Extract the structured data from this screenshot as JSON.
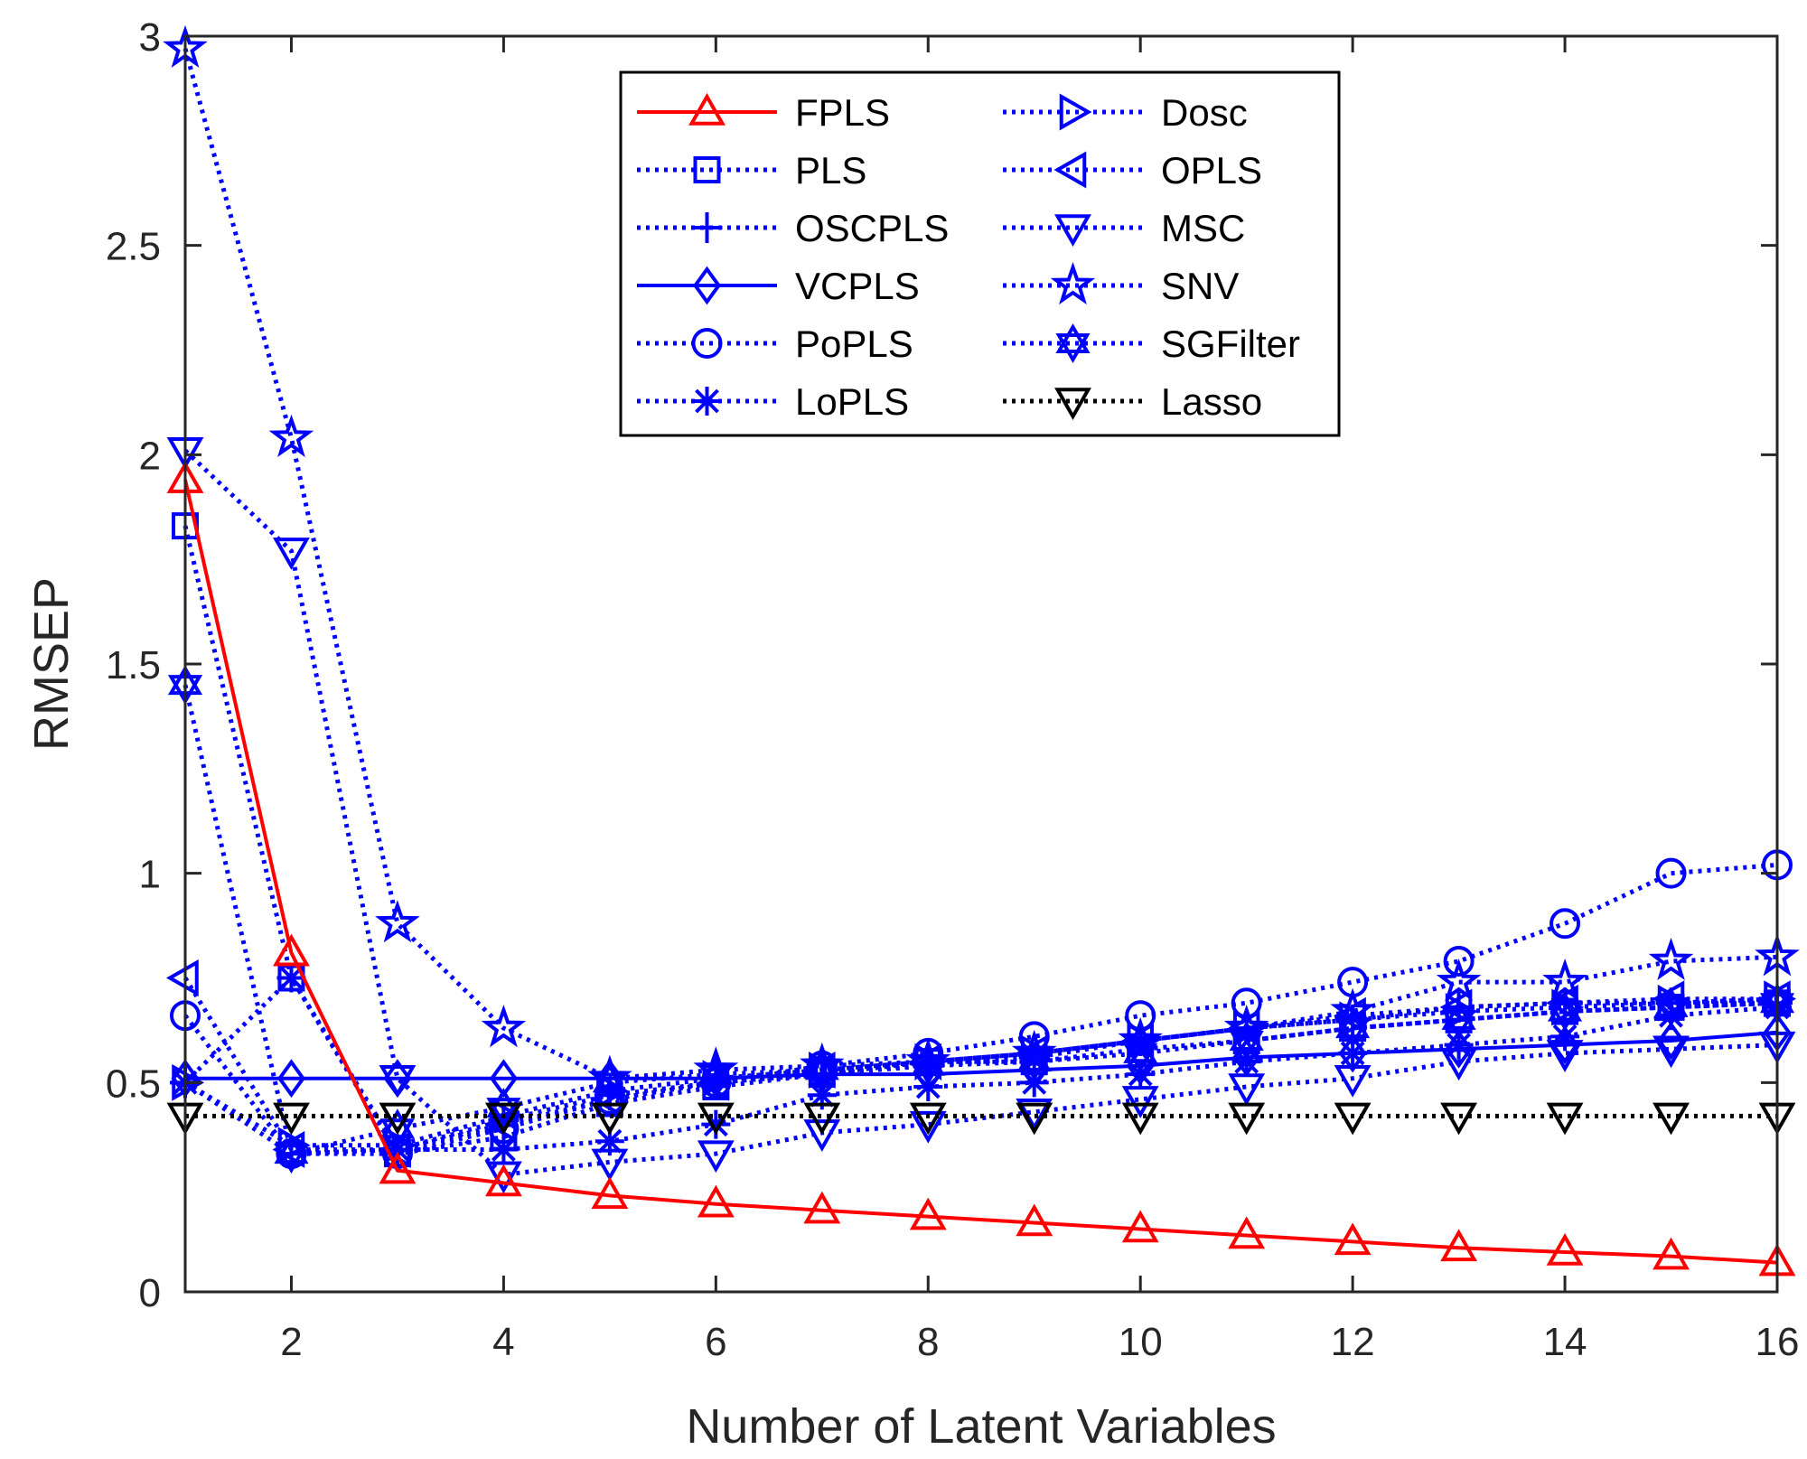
{
  "chart_data": {
    "type": "line",
    "title": "",
    "xlabel": "Number of Latent Variables",
    "ylabel": "RMSEP",
    "xlim": [
      1,
      16
    ],
    "ylim": [
      0,
      3
    ],
    "x": [
      1,
      2,
      3,
      4,
      5,
      6,
      7,
      8,
      9,
      10,
      11,
      12,
      13,
      14,
      15,
      16
    ],
    "xticks": [
      2,
      4,
      6,
      8,
      10,
      12,
      14,
      16
    ],
    "xtick_labels": [
      "2",
      "4",
      "6",
      "8",
      "10",
      "12",
      "14",
      "16"
    ],
    "yticks": [
      0,
      0.5,
      1,
      1.5,
      2,
      2.5,
      3
    ],
    "ytick_labels": [
      "0",
      "0.5",
      "1",
      "1.5",
      "2",
      "2.5",
      "3"
    ],
    "grid": false,
    "legend_position": "top-center",
    "series": [
      {
        "name": "FPLS",
        "color": "#ff0000",
        "line": "solid",
        "marker": "triangle-up",
        "values": [
          1.94,
          0.81,
          0.29,
          0.26,
          0.23,
          0.21,
          0.195,
          0.18,
          0.165,
          0.15,
          0.135,
          0.12,
          0.105,
          0.095,
          0.085,
          0.07
        ]
      },
      {
        "name": "PLS",
        "color": "#0000ff",
        "line": "dotted",
        "marker": "square",
        "values": [
          1.83,
          0.75,
          0.33,
          0.37,
          0.45,
          0.49,
          0.52,
          0.55,
          0.55,
          0.58,
          0.6,
          0.63,
          0.65,
          0.67,
          0.68,
          0.69
        ]
      },
      {
        "name": "OSCPLS",
        "color": "#0000ff",
        "line": "dotted",
        "marker": "plus",
        "values": [
          0.5,
          0.33,
          0.34,
          0.41,
          0.47,
          0.5,
          0.52,
          0.54,
          0.56,
          0.6,
          0.63,
          0.65,
          0.68,
          0.69,
          0.69,
          0.69
        ]
      },
      {
        "name": "VCPLS",
        "color": "#0000ff",
        "line": "solid",
        "marker": "diamond",
        "values": [
          0.51,
          0.51,
          0.51,
          0.51,
          0.51,
          0.51,
          0.52,
          0.52,
          0.53,
          0.54,
          0.56,
          0.57,
          0.58,
          0.59,
          0.6,
          0.62
        ]
      },
      {
        "name": "PoPLS",
        "color": "#0000ff",
        "line": "dotted",
        "marker": "circle",
        "values": [
          0.66,
          0.33,
          0.33,
          0.39,
          0.46,
          0.5,
          0.54,
          0.57,
          0.61,
          0.66,
          0.69,
          0.74,
          0.79,
          0.88,
          1.0,
          1.02
        ]
      },
      {
        "name": "LoPLS",
        "color": "#0000ff",
        "line": "dotted",
        "marker": "asterisk",
        "values": [
          0.5,
          0.75,
          0.34,
          0.34,
          0.36,
          0.4,
          0.47,
          0.49,
          0.5,
          0.52,
          0.55,
          0.57,
          0.59,
          0.61,
          0.66,
          0.68
        ]
      },
      {
        "name": "Dosc",
        "color": "#0000ff",
        "line": "dotted",
        "marker": "triangle-right",
        "values": [
          0.5,
          0.35,
          0.35,
          0.42,
          0.48,
          0.51,
          0.53,
          0.55,
          0.57,
          0.6,
          0.63,
          0.65,
          0.67,
          0.68,
          0.69,
          0.7
        ]
      },
      {
        "name": "OPLS",
        "color": "#0000ff",
        "line": "dotted",
        "marker": "triangle-left",
        "values": [
          0.75,
          0.34,
          0.34,
          0.4,
          0.46,
          0.5,
          0.53,
          0.55,
          0.57,
          0.6,
          0.63,
          0.66,
          0.68,
          0.69,
          0.7,
          0.7
        ]
      },
      {
        "name": "MSC",
        "color": "#0000ff",
        "line": "dotted",
        "marker": "triangle-down",
        "values": [
          2.01,
          1.77,
          0.51,
          0.28,
          0.31,
          0.33,
          0.38,
          0.4,
          0.43,
          0.46,
          0.49,
          0.51,
          0.55,
          0.57,
          0.58,
          0.59
        ]
      },
      {
        "name": "SNV",
        "color": "#0000ff",
        "line": "dotted",
        "marker": "star",
        "values": [
          2.97,
          2.04,
          0.88,
          0.63,
          0.51,
          0.53,
          0.54,
          0.55,
          0.57,
          0.6,
          0.63,
          0.67,
          0.74,
          0.74,
          0.79,
          0.8
        ]
      },
      {
        "name": "SGFilter",
        "color": "#0000ff",
        "line": "dotted",
        "marker": "hexagram",
        "values": [
          1.45,
          0.33,
          0.39,
          0.44,
          0.5,
          0.52,
          0.53,
          0.54,
          0.55,
          0.57,
          0.6,
          0.63,
          0.65,
          0.67,
          0.68,
          0.69
        ]
      },
      {
        "name": "Lasso",
        "color": "#000000",
        "line": "dotted",
        "marker": "triangle-down",
        "values": [
          0.42,
          0.42,
          0.42,
          0.42,
          0.42,
          0.42,
          0.42,
          0.42,
          0.42,
          0.42,
          0.42,
          0.42,
          0.42,
          0.42,
          0.42,
          0.42
        ]
      }
    ]
  }
}
